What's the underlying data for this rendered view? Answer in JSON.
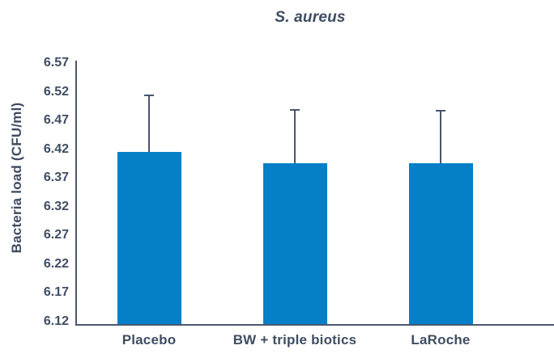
{
  "title": "S. aureus",
  "colors": {
    "bar": "#0580c8",
    "text": "#3f4d61",
    "axis": "#4a586d",
    "error_bar": "#47566c",
    "background": "#ffffff"
  },
  "chart_data": {
    "type": "bar",
    "title": "S. aureus",
    "categories": [
      "Placebo",
      "BW + triple biotics",
      "LaRoche"
    ],
    "values": [
      6.415,
      6.395,
      6.395
    ],
    "error_upper": [
      0.1,
      0.095,
      0.093
    ],
    "error_caps_at": [
      6.515,
      6.49,
      6.488
    ],
    "xlabel": "",
    "ylabel": "Bacteria load (CFU/ml)",
    "ylim": [
      6.12,
      6.57
    ],
    "yticks": [
      6.12,
      6.17,
      6.22,
      6.27,
      6.32,
      6.37,
      6.42,
      6.47,
      6.52,
      6.57
    ],
    "ytick_format": "0.00",
    "grid": false,
    "legend": null,
    "bar_color": "#0580c8"
  }
}
